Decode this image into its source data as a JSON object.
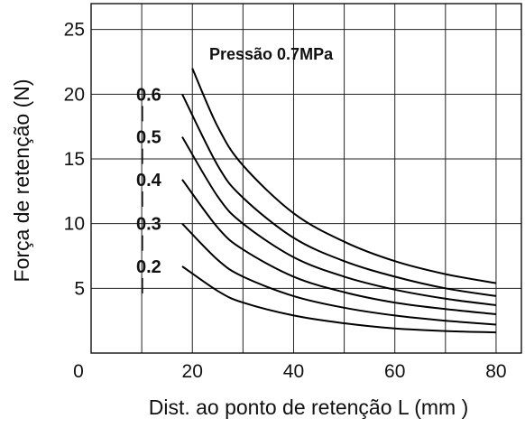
{
  "chart_data": {
    "type": "line",
    "xlabel": "Dist. ao ponto de retenção L (mm )",
    "ylabel": "Força de retenção (N)",
    "xlim": [
      0,
      85
    ],
    "ylim": [
      0,
      27
    ],
    "grid": true,
    "x_ticks": [
      0,
      20,
      40,
      60,
      80
    ],
    "x_tick_labels": [
      "0",
      "20",
      "40",
      "60",
      "80"
    ],
    "y_ticks": [
      5,
      10,
      15,
      20,
      25
    ],
    "y_tick_labels": [
      "5",
      "10",
      "15",
      "20",
      "25"
    ],
    "x_grid": [
      10,
      20,
      30,
      40,
      50,
      60,
      70,
      80
    ],
    "y_grid": [
      5,
      10,
      15,
      20,
      25
    ],
    "annotation": "Pressão 0.7MPa",
    "series": [
      {
        "name": "0.2",
        "x": [
          18,
          25,
          30,
          40,
          50,
          60,
          70,
          80
        ],
        "y": [
          6.7,
          4.8,
          3.9,
          2.9,
          2.3,
          1.9,
          1.7,
          1.6
        ]
      },
      {
        "name": "0.3",
        "x": [
          18,
          25,
          30,
          40,
          50,
          60,
          70,
          80
        ],
        "y": [
          10.0,
          7.2,
          5.9,
          4.4,
          3.5,
          2.9,
          2.5,
          2.2
        ]
      },
      {
        "name": "0.4",
        "x": [
          18,
          25,
          30,
          40,
          50,
          60,
          70,
          80
        ],
        "y": [
          13.4,
          9.7,
          8.0,
          5.9,
          4.7,
          3.9,
          3.4,
          3.0
        ]
      },
      {
        "name": "0.5",
        "x": [
          18,
          25,
          30,
          40,
          50,
          60,
          70,
          80
        ],
        "y": [
          16.7,
          12.1,
          10.0,
          7.4,
          5.9,
          4.9,
          4.2,
          3.7
        ]
      },
      {
        "name": "0.6",
        "x": [
          18,
          25,
          30,
          40,
          50,
          60,
          70,
          80
        ],
        "y": [
          20.0,
          14.5,
          12.0,
          8.9,
          7.1,
          5.9,
          5.0,
          4.4
        ]
      },
      {
        "name": "0.7",
        "x": [
          20,
          25,
          30,
          40,
          50,
          60,
          70,
          80
        ],
        "y": [
          22.0,
          17.5,
          14.5,
          10.8,
          8.6,
          7.1,
          6.1,
          5.4
        ]
      }
    ]
  }
}
